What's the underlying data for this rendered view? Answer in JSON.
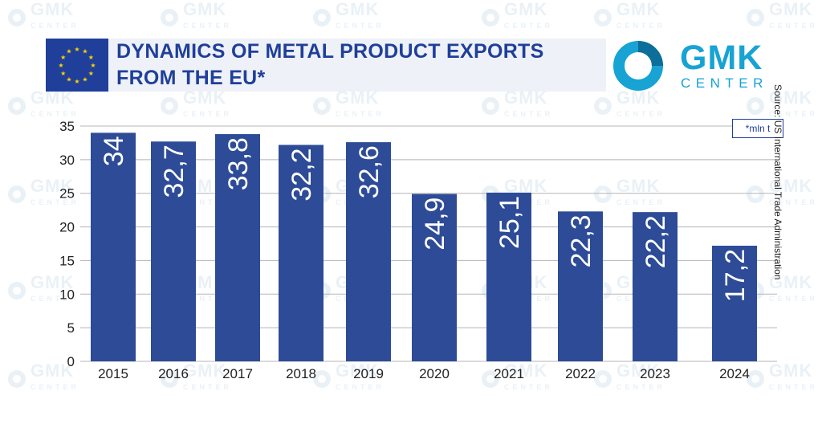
{
  "header": {
    "title": "DYNAMICS OF METAL PRODUCT EXPORTS FROM THE EU*",
    "logo_name": "GMK",
    "logo_sub": "CENTER",
    "source": "Source: US International Trade Administration",
    "unit_note": "*mln t"
  },
  "colors": {
    "bar": "#2d4b97",
    "accent": "#1f3f9a",
    "logo": "#17a3d3"
  },
  "chart_data": {
    "type": "bar",
    "title": "DYNAMICS OF METAL PRODUCT EXPORTS FROM THE EU*",
    "categories": [
      "2015",
      "2016",
      "2017",
      "2018",
      "2019",
      "2020",
      "2021",
      "2022",
      "2023",
      "2024"
    ],
    "values": [
      34,
      32.7,
      33.8,
      32.2,
      32.6,
      24.9,
      25.1,
      22.3,
      22.2,
      17.2
    ],
    "data_labels": [
      "34",
      "32,7",
      "33,8",
      "32,2",
      "32,6",
      "24,9",
      "25,1",
      "22,3",
      "22,2",
      "17,2"
    ],
    "y_ticks": [
      "0",
      "5",
      "10",
      "15",
      "20",
      "25",
      "30",
      "35"
    ],
    "ylim": [
      0,
      35
    ],
    "xlabel": "",
    "ylabel": "",
    "grid": true,
    "legend": "none",
    "unit": "*mln t"
  }
}
